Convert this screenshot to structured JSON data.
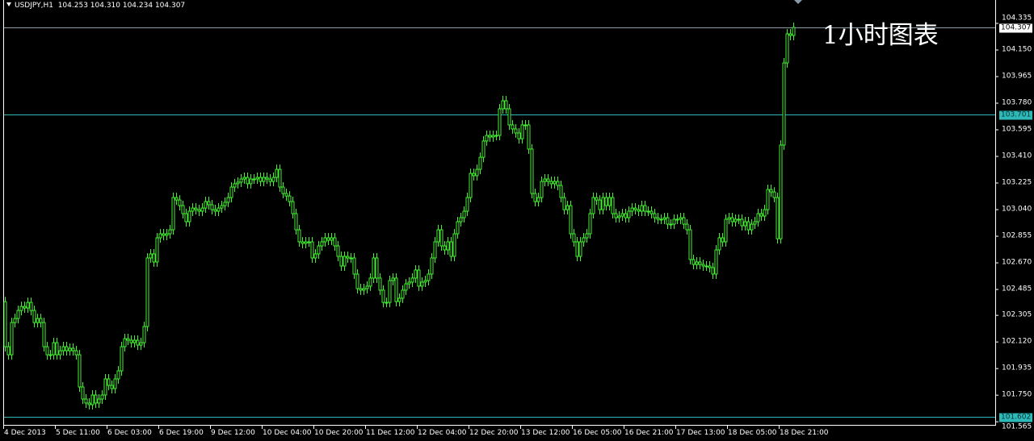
{
  "header": {
    "symbol": "USDJPY,H1",
    "ohlc": "104.253 104.310 104.234 104.307"
  },
  "watermark": "1小时图表",
  "colors": {
    "candle": "#44f032",
    "bid_line": "#8a9aa6",
    "level_line": "#2fb8b8",
    "axis": "#ffffff",
    "background": "#000000"
  },
  "chart_data": {
    "type": "candlestick",
    "title": "USDJPY,H1",
    "timeframe": "H1",
    "ylim": [
      101.565,
      104.335
    ],
    "grid": false,
    "y_ticks": [
      "104.335",
      "104.150",
      "103.965",
      "103.780",
      "103.595",
      "103.410",
      "103.225",
      "103.040",
      "102.855",
      "102.670",
      "102.485",
      "102.305",
      "102.120",
      "101.935",
      "101.750",
      "101.565"
    ],
    "x_ticks": [
      "4 Dec 2013",
      "5 Dec 11:00",
      "6 Dec 03:00",
      "6 Dec 19:00",
      "9 Dec 12:00",
      "10 Dec 04:00",
      "10 Dec 20:00",
      "11 Dec 12:00",
      "12 Dec 04:00",
      "12 Dec 20:00",
      "13 Dec 12:00",
      "16 Dec 05:00",
      "16 Dec 21:00",
      "17 Dec 13:00",
      "18 Dec 05:00",
      "18 Dec 21:00"
    ],
    "price_lines": [
      {
        "label": "104.307",
        "value": 104.307,
        "kind": "bid"
      },
      {
        "label": "103.701",
        "value": 103.701,
        "kind": "level"
      },
      {
        "label": "101.602",
        "value": 101.602,
        "kind": "level"
      }
    ],
    "first_open": 102.4,
    "closes": [
      102.087,
      102.031,
      102.255,
      102.283,
      102.339,
      102.367,
      102.356,
      102.395,
      102.339,
      102.255,
      102.283,
      102.255,
      102.087,
      102.031,
      102.031,
      102.115,
      102.031,
      102.059,
      102.087,
      102.059,
      102.076,
      102.059,
      102.031,
      101.807,
      101.723,
      101.695,
      101.684,
      101.751,
      101.695,
      101.723,
      101.751,
      101.863,
      101.818,
      101.796,
      101.863,
      101.919,
      102.087,
      102.143,
      102.132,
      102.115,
      102.132,
      102.098,
      102.115,
      102.227,
      102.704,
      102.732,
      102.676,
      102.844,
      102.872,
      102.861,
      102.872,
      102.9,
      103.124,
      103.107,
      103.068,
      103.012,
      102.956,
      103.029,
      103.051,
      103.04,
      103.029,
      103.051,
      103.096,
      103.074,
      103.04,
      103.029,
      103.051,
      103.068,
      103.091,
      103.124,
      103.197,
      103.22,
      103.231,
      103.253,
      103.264,
      103.22,
      103.253,
      103.253,
      103.264,
      103.236,
      103.264,
      103.253,
      103.236,
      103.264,
      103.32,
      103.197,
      103.152,
      103.135,
      103.096,
      103.012,
      102.9,
      102.816,
      102.805,
      102.816,
      102.816,
      102.704,
      102.732,
      102.788,
      102.816,
      102.844,
      102.827,
      102.844,
      102.788,
      102.715,
      102.648,
      102.715,
      102.704,
      102.704,
      102.592,
      102.491,
      102.48,
      102.491,
      102.508,
      102.564,
      102.704,
      102.564,
      102.48,
      102.395,
      102.395,
      102.547,
      102.564,
      102.401,
      102.424,
      102.48,
      102.524,
      102.536,
      102.564,
      102.62,
      102.508,
      102.536,
      102.547,
      102.592,
      102.704,
      102.816,
      102.9,
      102.788,
      102.76,
      102.816,
      102.715,
      102.872,
      102.956,
      102.984,
      103.029,
      103.124,
      103.292,
      103.276,
      103.32,
      103.404,
      103.517,
      103.556,
      103.545,
      103.556,
      103.556,
      103.741,
      103.797,
      103.741,
      103.629,
      103.601,
      103.573,
      103.533,
      103.629,
      103.629,
      103.461,
      103.152,
      103.096,
      103.124,
      103.236,
      103.253,
      103.236,
      103.22,
      103.236,
      103.208,
      103.124,
      103.04,
      103.068,
      102.872,
      102.816,
      102.715,
      102.816,
      102.844,
      102.872,
      103.012,
      103.124,
      103.107,
      103.04,
      103.124,
      103.068,
      103.124,
      103.012,
      102.984,
      102.995,
      103.012,
      102.984,
      103.029,
      103.051,
      103.04,
      103.029,
      103.068,
      103.029,
      103.029,
      103.012,
      102.984,
      102.973,
      102.973,
      102.984,
      102.939,
      102.939,
      102.973,
      102.973,
      102.984,
      102.939,
      102.9,
      102.693,
      102.659,
      102.676,
      102.659,
      102.648,
      102.648,
      102.637,
      102.592,
      102.76,
      102.844,
      102.816,
      102.973,
      102.984,
      102.956,
      102.973,
      102.973,
      102.928,
      102.956,
      102.9,
      102.939,
      102.956,
      103.012,
      102.995,
      103.04,
      103.18,
      103.163,
      103.124,
      102.838,
      103.489,
      104.06,
      104.262,
      104.251,
      104.307
    ]
  }
}
